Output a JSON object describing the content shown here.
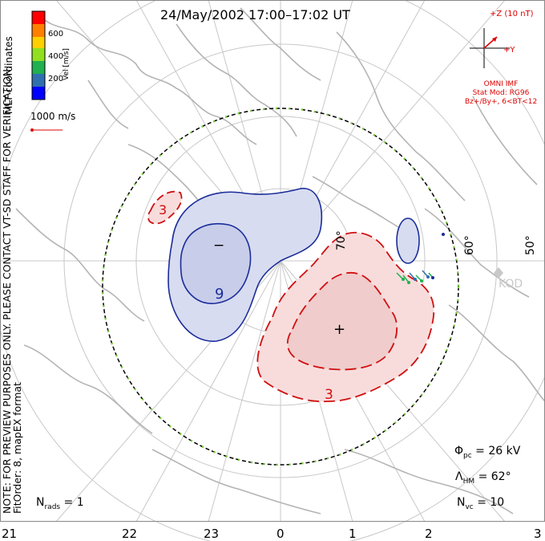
{
  "title": "24/May/2002 17:00–17:02 UT",
  "side_text": {
    "line1": "NOTE: FOR PREVIEW PURPOSES ONLY. PLEASE CONTACT VT-SD STAFF FOR VERIFICATION.",
    "line2": "FitOrder: 8, mapEX format",
    "mlt": "MLT coordinates"
  },
  "legend": {
    "unit": "Vel [m/s]",
    "ticks": [
      "600",
      "400",
      "200"
    ],
    "colors": [
      "#ff0000",
      "#ff8000",
      "#ffd000",
      "#90e020",
      "#20b050",
      "#3070b0",
      "#0000ff"
    ]
  },
  "reference_vector": {
    "label": "1000 m/s"
  },
  "imf": {
    "label": "+Z (10 nT)",
    "y_label": "+Y",
    "source": "OMNI IMF",
    "model": "Stat Mod: RG96",
    "condition": "Bz+/By+, 6<BT<12"
  },
  "stats": {
    "phi_pc": "Φpc = 26 kV",
    "phi_symbol": "Φ",
    "phi_sub": "pc",
    "phi_rest": " = 26 kV",
    "lambda_symbol": "Λ",
    "lambda_sub": "HM",
    "lambda_rest": " = 62°",
    "n_rads_symbol": "N",
    "n_rads_sub": "rads",
    "n_rads_rest": " = 1",
    "n_vc_symbol": "N",
    "n_vc_sub": "vc",
    "n_vc_rest": " = 10"
  },
  "mlt_labels": [
    "21",
    "22",
    "23",
    "0",
    "1",
    "2",
    "3"
  ],
  "latitude_labels": [
    "60°",
    "50°",
    "70°"
  ],
  "station": "KOD",
  "contours": {
    "negative_label": "−",
    "negative_value": "9",
    "positive_label": "+",
    "positive_value": "3",
    "positive_value_left": "3"
  },
  "colors": {
    "grid": "#c8c8c8",
    "coast": "#b4b4b4",
    "negative_fill": "#d8dcf0",
    "negative_line": "#1a2d9a",
    "positive_fill": "#f8dcdc",
    "positive_line": "#d01010",
    "hmb_dash": "#7fd040"
  }
}
